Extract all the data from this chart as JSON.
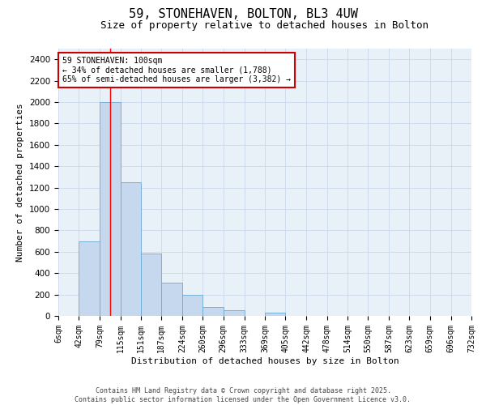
{
  "title": "59, STONEHAVEN, BOLTON, BL3 4UW",
  "subtitle": "Size of property relative to detached houses in Bolton",
  "xlabel": "Distribution of detached houses by size in Bolton",
  "ylabel": "Number of detached properties",
  "bar_color": "#c5d8ee",
  "bar_edge_color": "#6aaad4",
  "grid_color": "#c8d8ea",
  "background_color": "#e8f0f8",
  "bins": [
    6,
    42,
    79,
    115,
    151,
    187,
    224,
    260,
    296,
    333,
    369,
    405,
    442,
    478,
    514,
    550,
    587,
    623,
    659,
    696,
    732
  ],
  "bar_heights": [
    0,
    700,
    2000,
    1250,
    580,
    310,
    200,
    80,
    50,
    0,
    30,
    0,
    0,
    0,
    0,
    0,
    0,
    0,
    0,
    0
  ],
  "ylim": [
    0,
    2500
  ],
  "yticks": [
    0,
    200,
    400,
    600,
    800,
    1000,
    1200,
    1400,
    1600,
    1800,
    2000,
    2200,
    2400
  ],
  "red_line_x": 97,
  "annotation_text": "59 STONEHAVEN: 100sqm\n← 34% of detached houses are smaller (1,788)\n65% of semi-detached houses are larger (3,382) →",
  "annotation_box_facecolor": "#ffffff",
  "annotation_box_edgecolor": "#cc0000",
  "footer_line1": "Contains HM Land Registry data © Crown copyright and database right 2025.",
  "footer_line2": "Contains public sector information licensed under the Open Government Licence v3.0.",
  "title_fontsize": 11,
  "subtitle_fontsize": 9,
  "tick_label_fontsize": 7,
  "ylabel_fontsize": 8,
  "xlabel_fontsize": 8,
  "annotation_fontsize": 7,
  "footer_fontsize": 6
}
